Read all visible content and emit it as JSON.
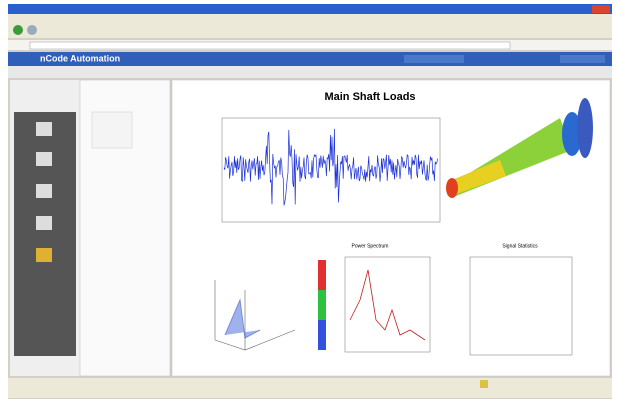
{
  "app": {
    "title": "nCode Automation"
  },
  "report": {
    "title": "Main Shaft Loads",
    "panels": [
      "Power Spectrum",
      "Signal Statistics"
    ]
  }
}
